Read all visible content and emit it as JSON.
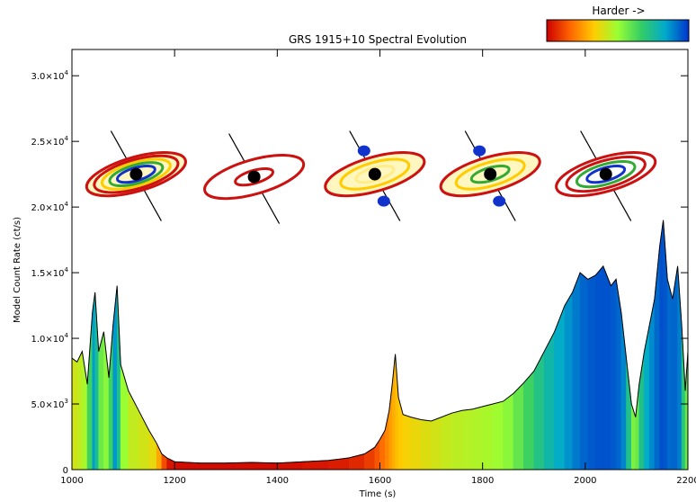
{
  "chart_data": {
    "type": "area",
    "title": "GRS 1915+10 Spectral Evolution",
    "xlabel": "Time (s)",
    "ylabel": "Model Count Rate (ct/s)",
    "xlim": [
      1000,
      2200
    ],
    "ylim": [
      0,
      32000
    ],
    "x_ticks": [
      1000,
      1200,
      1400,
      1600,
      1800,
      2000,
      2200
    ],
    "x_tick_labels": [
      "1000",
      "1200",
      "1400",
      "1600",
      "1800",
      "2000",
      "2200"
    ],
    "y_ticks": [
      0,
      5000,
      10000,
      15000,
      20000,
      25000,
      30000
    ],
    "y_tick_labels": [
      {
        "mant": "0",
        "exp": ""
      },
      {
        "mant": "5.0×10",
        "exp": "3"
      },
      {
        "mant": "1.0×10",
        "exp": "4"
      },
      {
        "mant": "1.5×10",
        "exp": "4"
      },
      {
        "mant": "2.0×10",
        "exp": "4"
      },
      {
        "mant": "2.5×10",
        "exp": "4"
      },
      {
        "mant": "3.0×10",
        "exp": "4"
      }
    ],
    "colorbar": {
      "label": "Harder ->",
      "stops": [
        "#cc0000",
        "#ff6600",
        "#ffcc00",
        "#99ff33",
        "#33cc66",
        "#00aacc",
        "#0033cc"
      ]
    },
    "curve_color": "#000000",
    "series": [
      {
        "points": [
          [
            1000,
            8500,
            0.4
          ],
          [
            1010,
            8200,
            0.42
          ],
          [
            1020,
            9000,
            0.45
          ],
          [
            1030,
            6500,
            0.5
          ],
          [
            1040,
            12000,
            0.8
          ],
          [
            1045,
            13500,
            0.9
          ],
          [
            1052,
            9000,
            0.6
          ],
          [
            1062,
            10500,
            0.55
          ],
          [
            1072,
            7000,
            0.5
          ],
          [
            1080,
            11000,
            0.8
          ],
          [
            1088,
            14000,
            0.92
          ],
          [
            1095,
            8000,
            0.55
          ],
          [
            1110,
            6000,
            0.45
          ],
          [
            1130,
            4500,
            0.42
          ],
          [
            1150,
            3000,
            0.4
          ],
          [
            1165,
            2000,
            0.35
          ],
          [
            1175,
            1200,
            0.2
          ],
          [
            1185,
            900,
            0.05
          ],
          [
            1200,
            600,
            0.02
          ],
          [
            1250,
            500,
            0.02
          ],
          [
            1300,
            500,
            0.02
          ],
          [
            1350,
            550,
            0.02
          ],
          [
            1400,
            500,
            0.02
          ],
          [
            1450,
            600,
            0.03
          ],
          [
            1500,
            700,
            0.04
          ],
          [
            1540,
            900,
            0.05
          ],
          [
            1570,
            1200,
            0.08
          ],
          [
            1590,
            1700,
            0.12
          ],
          [
            1600,
            2300,
            0.16
          ],
          [
            1610,
            3000,
            0.2
          ],
          [
            1618,
            4500,
            0.24
          ],
          [
            1624,
            6500,
            0.27
          ],
          [
            1630,
            8800,
            0.3
          ],
          [
            1636,
            5500,
            0.32
          ],
          [
            1645,
            4200,
            0.34
          ],
          [
            1660,
            4000,
            0.36
          ],
          [
            1680,
            3800,
            0.38
          ],
          [
            1700,
            3700,
            0.4
          ],
          [
            1720,
            4000,
            0.42
          ],
          [
            1740,
            4300,
            0.44
          ],
          [
            1760,
            4500,
            0.45
          ],
          [
            1780,
            4600,
            0.46
          ],
          [
            1800,
            4800,
            0.47
          ],
          [
            1820,
            5000,
            0.48
          ],
          [
            1840,
            5200,
            0.5
          ],
          [
            1860,
            5800,
            0.55
          ],
          [
            1880,
            6600,
            0.62
          ],
          [
            1900,
            7500,
            0.68
          ],
          [
            1920,
            9000,
            0.75
          ],
          [
            1940,
            10500,
            0.8
          ],
          [
            1960,
            12500,
            0.85
          ],
          [
            1975,
            13500,
            0.88
          ],
          [
            1990,
            15000,
            0.92
          ],
          [
            2005,
            14500,
            0.94
          ],
          [
            2020,
            14800,
            0.95
          ],
          [
            2035,
            15500,
            0.96
          ],
          [
            2050,
            14000,
            0.95
          ],
          [
            2060,
            14500,
            0.94
          ],
          [
            2070,
            12000,
            0.92
          ],
          [
            2080,
            8500,
            0.85
          ],
          [
            2090,
            5000,
            0.6
          ],
          [
            2098,
            4000,
            0.5
          ],
          [
            2105,
            6500,
            0.65
          ],
          [
            2115,
            9000,
            0.8
          ],
          [
            2125,
            11000,
            0.85
          ],
          [
            2135,
            13000,
            0.9
          ],
          [
            2145,
            17000,
            0.95
          ],
          [
            2152,
            19000,
            0.97
          ],
          [
            2160,
            14500,
            0.93
          ],
          [
            2170,
            13000,
            0.92
          ],
          [
            2180,
            15500,
            0.94
          ],
          [
            2188,
            11000,
            0.85
          ],
          [
            2195,
            6000,
            0.55
          ],
          [
            2200,
            9000,
            0.6
          ]
        ]
      }
    ],
    "annotations": {
      "sketches": [
        {
          "x": 1125,
          "y": 22500,
          "rings": [
            "#cc1111",
            "#cc1111",
            "#ffcc00",
            "#33aa33",
            "#1133cc"
          ],
          "fill": "#fff6c0",
          "jets": false
        },
        {
          "x": 1355,
          "y": 22300,
          "rings": [
            "#cc1111",
            "#cc1111"
          ],
          "fill": "#ffffff",
          "jets": false
        },
        {
          "x": 1590,
          "y": 22500,
          "rings": [
            "#cc1111",
            "#ffcc00",
            "#ffee88"
          ],
          "fill": "#fff6c0",
          "jets": true
        },
        {
          "x": 1815,
          "y": 22500,
          "rings": [
            "#cc1111",
            "#ffcc00",
            "#33aa33"
          ],
          "fill": "#fff6c0",
          "jets": true
        },
        {
          "x": 2040,
          "y": 22500,
          "rings": [
            "#cc1111",
            "#cc1111",
            "#33aa33",
            "#1133cc"
          ],
          "fill": "#ffffff",
          "jets": false
        }
      ]
    }
  }
}
